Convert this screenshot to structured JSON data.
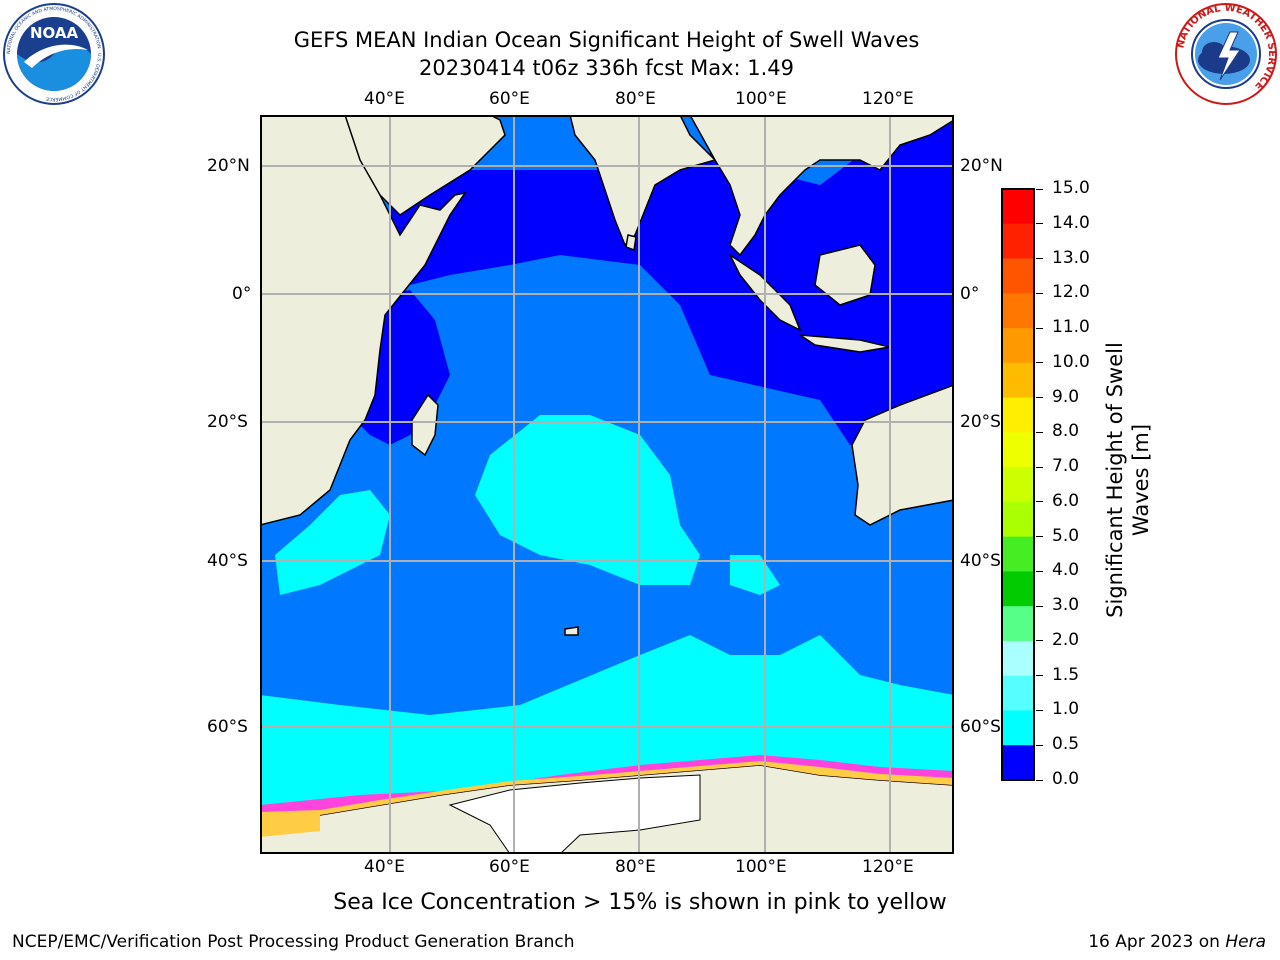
{
  "title_line1": "GEFS MEAN Indian Ocean Significant Height of Swell Waves",
  "title_line2": "20230414 t06z 336h fcst   Max: 1.49",
  "map": {
    "lon_ticks_top": [
      "40°E",
      "60°E",
      "80°E",
      "100°E",
      "120°E"
    ],
    "lon_ticks_bottom": [
      "40°E",
      "60°E",
      "80°E",
      "100°E",
      "120°E"
    ],
    "lat_ticks_left": [
      "20°N",
      "0°",
      "20°S",
      "40°S",
      "60°S"
    ],
    "lat_ticks_right": [
      "20°N",
      "0°",
      "20°S",
      "40°S",
      "60°S"
    ],
    "colors": {
      "land": "#eeeedd",
      "ocean_0_0_5": "#0000ff",
      "ocean_0_5_1_0": "#0078ff",
      "ocean_1_0_1_5": "#00ffff",
      "sea_ice_low": "#ff44dd",
      "sea_ice_high": "#ffcc44",
      "ice_sheet": "#ffffff",
      "grid": "#b0b0b0",
      "coastline": "#000000"
    }
  },
  "colorbar": {
    "label": "Significant Height of Swell Waves [m]",
    "label_line1": "Significant Height of Swell",
    "label_line2": "Waves [m]",
    "ticks": [
      "15.0",
      "14.0",
      "13.0",
      "12.0",
      "11.0",
      "10.0",
      "9.0",
      "8.0",
      "7.0",
      "6.0",
      "5.0",
      "4.0",
      "3.0",
      "2.0",
      "1.5",
      "1.0",
      "0.5",
      "0.0"
    ],
    "bins_top_to_bottom": [
      "#ff0000",
      "#ff2200",
      "#ff5500",
      "#ff7700",
      "#ff9900",
      "#ffbb00",
      "#ffee00",
      "#eeff00",
      "#ccff00",
      "#aaff00",
      "#44ee22",
      "#00cc00",
      "#55ff88",
      "#aaffff",
      "#55ffff",
      "#00ffff",
      "#0078ff",
      "#0000ff"
    ]
  },
  "footnote": "Sea Ice Concentration > 15% is shown in pink to yellow",
  "credit": "NCEP/EMC/Verification Post Processing Product Generation Branch",
  "datestamp": "16 Apr 2023 on",
  "datestamp_machine": "Hera",
  "logos": {
    "noaa_text": "NOAA",
    "noaa_ring": "NATIONAL OCEANIC AND ATMOSPHERIC ADMINISTRATION · U.S. DEPARTMENT OF COMMERCE",
    "nws_ring": "NATIONAL WEATHER SERVICE"
  }
}
